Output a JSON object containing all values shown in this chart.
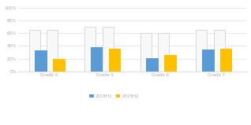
{
  "categories": [
    "Grade 4",
    "Grade 5",
    "Grade 6",
    "Grade 7"
  ],
  "series1_label": "2018H1",
  "series2_label": "2018H2",
  "series1_color": "#5b9bd5",
  "series2_color": "#ffc000",
  "white_bar_color": "#f8f8f8",
  "white_bar_edge": "#cccccc",
  "series1_values": [
    0.33,
    0.38,
    0.21,
    0.35
  ],
  "series2_values": [
    0.2,
    0.36,
    0.26,
    0.355
  ],
  "background_values": [
    0.65,
    0.7,
    0.6,
    0.65
  ],
  "ylim": [
    0,
    1.05
  ],
  "yticks": [
    0,
    0.2,
    0.4,
    0.6,
    0.8,
    1.0
  ],
  "ytick_labels": [
    "0%",
    "20%",
    "40%",
    "60%",
    "80%",
    "100%"
  ],
  "bg_color": "#ffffff",
  "grid_color": "#e0e0e0",
  "tick_color": "#aaaaaa",
  "group_width": 0.72,
  "bar_width": 0.22,
  "white_bar_width": 0.2
}
